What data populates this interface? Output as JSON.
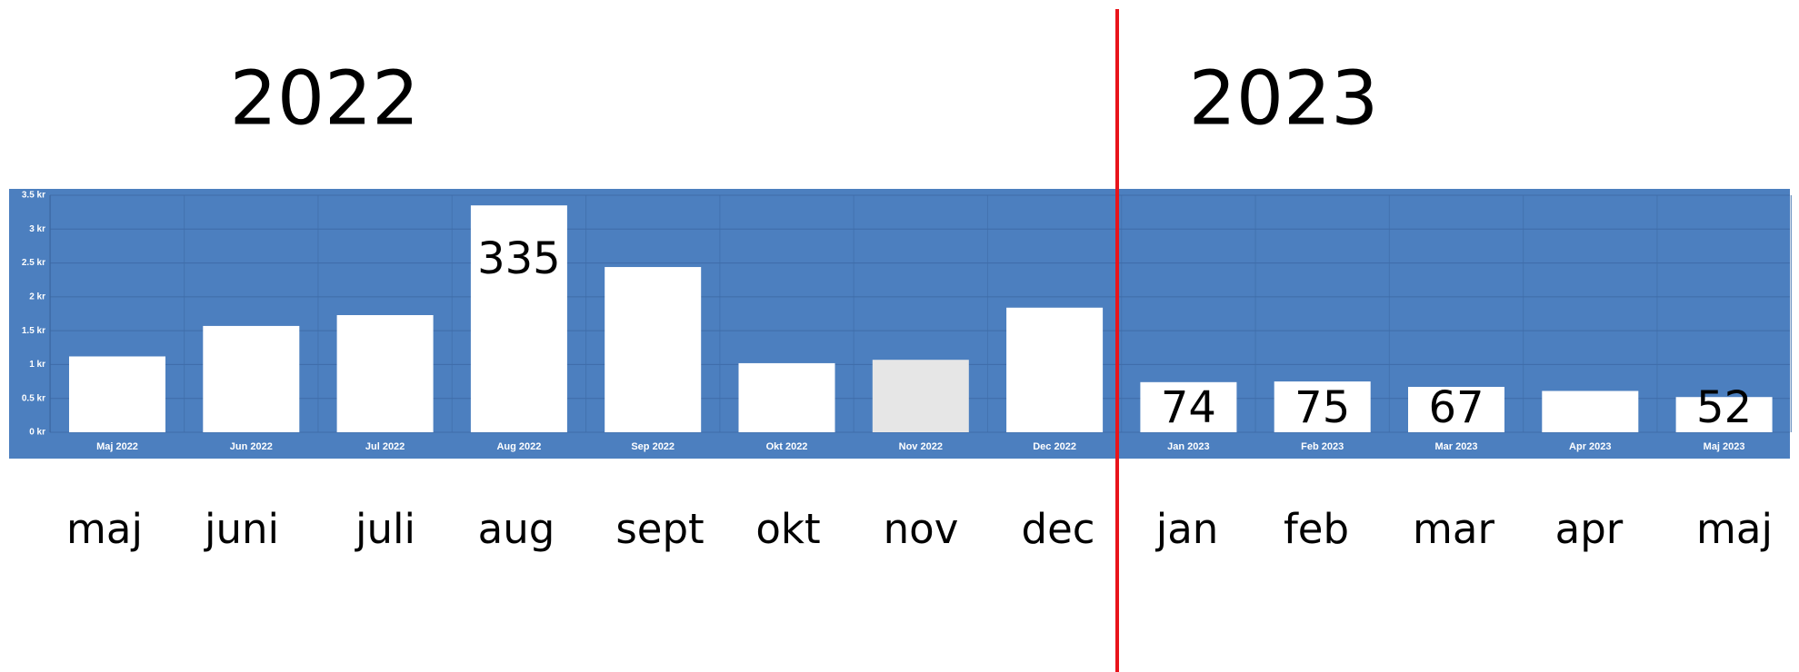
{
  "chart_data": {
    "type": "bar",
    "categories": [
      "Maj 2022",
      "Jun 2022",
      "Jul 2022",
      "Aug 2022",
      "Sep 2022",
      "Okt 2022",
      "Nov 2022",
      "Dec 2022",
      "Jan 2023",
      "Feb 2023",
      "Mar 2023",
      "Apr 2023",
      "Maj 2023"
    ],
    "values": [
      1.12,
      1.57,
      1.73,
      3.35,
      2.44,
      1.02,
      1.07,
      1.84,
      0.74,
      0.75,
      0.67,
      0.61,
      0.52
    ],
    "value_labels": [
      null,
      null,
      null,
      "335",
      null,
      null,
      null,
      null,
      "74",
      "75",
      "67",
      null,
      "52"
    ],
    "colors": [
      "#ffffff",
      "#ffffff",
      "#ffffff",
      "#ffffff",
      "#ffffff",
      "#ffffff",
      "#e6e6e6",
      "#ffffff",
      "#ffffff",
      "#ffffff",
      "#ffffff",
      "#ffffff",
      "#ffffff"
    ],
    "ylim": [
      0,
      3.5
    ],
    "yticks": [
      {
        "value": 0,
        "label": "0 kr"
      },
      {
        "value": 0.5,
        "label": "0.5 kr"
      },
      {
        "value": 1,
        "label": "1 kr"
      },
      {
        "value": 1.5,
        "label": "1.5 kr"
      },
      {
        "value": 2,
        "label": "2 kr"
      },
      {
        "value": 2.5,
        "label": "2.5 kr"
      },
      {
        "value": 3,
        "label": "3 kr"
      },
      {
        "value": 3.5,
        "label": "3.5 kr"
      }
    ],
    "grid": true,
    "year_labels": [
      "2022",
      "2023"
    ],
    "month_labels": [
      "maj",
      "juni",
      "juli",
      "aug",
      "sept",
      "okt",
      "nov",
      "dec",
      "jan",
      "feb",
      "mar",
      "apr",
      "maj"
    ]
  }
}
